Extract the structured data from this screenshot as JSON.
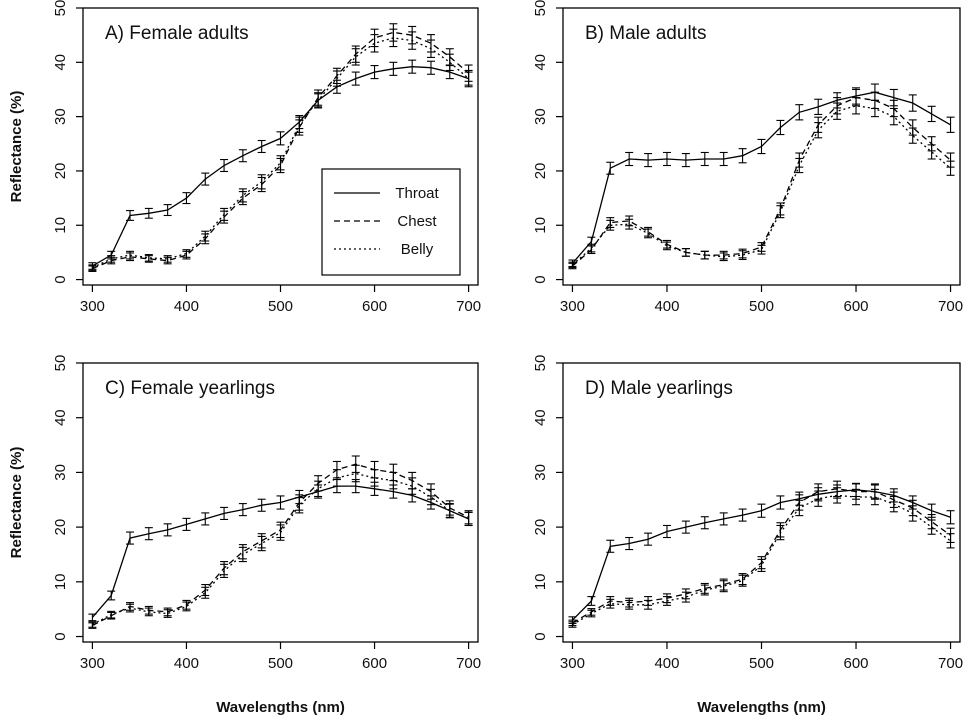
{
  "chart_data": [
    {
      "type": "line",
      "title": "A) Female adults",
      "xlabel": "",
      "ylabel": "Reflectance (%)",
      "xlim": [
        290,
        710
      ],
      "ylim": [
        -1,
        50
      ],
      "xticks": [
        300,
        400,
        500,
        600,
        700
      ],
      "yticks": [
        0,
        10,
        20,
        30,
        40,
        50
      ],
      "x": [
        300,
        320,
        340,
        360,
        380,
        400,
        420,
        440,
        460,
        480,
        500,
        520,
        540,
        560,
        580,
        600,
        620,
        640,
        660,
        680,
        700
      ],
      "legend": {
        "placement": "center-right",
        "entries": [
          "Throat",
          "Chest",
          "Belly"
        ]
      },
      "series": [
        {
          "name": "Throat",
          "style": "solid",
          "values": [
            2.5,
            4.5,
            11.8,
            12.2,
            12.8,
            15.0,
            18.5,
            21.0,
            22.8,
            24.5,
            26.0,
            29.0,
            33.0,
            35.5,
            37.0,
            38.2,
            38.8,
            39.2,
            39.0,
            38.2,
            37.0
          ],
          "err": [
            0.6,
            0.7,
            0.9,
            0.9,
            1.0,
            1.0,
            1.1,
            1.1,
            1.1,
            1.1,
            1.2,
            1.2,
            1.2,
            1.2,
            1.2,
            1.2,
            1.2,
            1.2,
            1.2,
            1.2,
            1.2
          ]
        },
        {
          "name": "Chest",
          "style": "dashed",
          "values": [
            2.0,
            3.5,
            4.2,
            3.8,
            3.5,
            4.5,
            7.5,
            11.5,
            15.0,
            17.5,
            21.0,
            28.0,
            33.5,
            37.5,
            41.5,
            44.5,
            45.5,
            45.0,
            43.5,
            41.0,
            38.0
          ],
          "err": [
            0.5,
            0.6,
            0.7,
            0.6,
            0.6,
            0.7,
            0.9,
            1.1,
            1.2,
            1.3,
            1.3,
            1.4,
            1.4,
            1.4,
            1.5,
            1.6,
            1.6,
            1.6,
            1.6,
            1.5,
            1.5
          ]
        },
        {
          "name": "Belly",
          "style": "dotted",
          "values": [
            2.2,
            3.8,
            4.5,
            4.0,
            3.8,
            4.8,
            8.0,
            12.0,
            15.5,
            18.0,
            21.5,
            28.5,
            33.0,
            37.0,
            41.0,
            43.5,
            44.5,
            44.0,
            42.5,
            40.0,
            37.0
          ],
          "err": [
            0.5,
            0.6,
            0.7,
            0.6,
            0.6,
            0.7,
            0.9,
            1.1,
            1.2,
            1.3,
            1.3,
            1.4,
            1.4,
            1.4,
            1.5,
            1.6,
            1.6,
            1.6,
            1.6,
            1.5,
            1.5
          ]
        }
      ]
    },
    {
      "type": "line",
      "title": "B) Male adults",
      "xlabel": "",
      "ylabel": "",
      "xlim": [
        290,
        710
      ],
      "ylim": [
        -1,
        50
      ],
      "xticks": [
        300,
        400,
        500,
        600,
        700
      ],
      "yticks": [
        0,
        10,
        20,
        30,
        40,
        50
      ],
      "x": [
        300,
        320,
        340,
        360,
        380,
        400,
        420,
        440,
        460,
        480,
        500,
        520,
        540,
        560,
        580,
        600,
        620,
        640,
        660,
        680,
        700
      ],
      "series": [
        {
          "name": "Throat",
          "style": "solid",
          "values": [
            3.0,
            7.0,
            20.5,
            22.2,
            22.0,
            22.2,
            22.0,
            22.2,
            22.2,
            22.8,
            24.5,
            28.0,
            30.8,
            31.8,
            33.0,
            33.8,
            34.5,
            33.5,
            32.5,
            30.5,
            28.5
          ],
          "err": [
            0.6,
            0.8,
            1.1,
            1.2,
            1.2,
            1.2,
            1.2,
            1.2,
            1.2,
            1.3,
            1.3,
            1.3,
            1.4,
            1.4,
            1.4,
            1.5,
            1.5,
            1.5,
            1.5,
            1.4,
            1.4
          ]
        },
        {
          "name": "Chest",
          "style": "dashed",
          "values": [
            2.5,
            5.5,
            10.5,
            10.8,
            8.8,
            6.5,
            5.0,
            4.5,
            4.5,
            4.8,
            6.0,
            13.0,
            22.0,
            28.5,
            32.0,
            33.5,
            33.0,
            31.5,
            28.0,
            25.0,
            22.0
          ],
          "err": [
            0.5,
            0.7,
            0.9,
            0.9,
            0.8,
            0.7,
            0.7,
            0.7,
            0.7,
            0.8,
            0.8,
            1.1,
            1.3,
            1.4,
            1.5,
            1.5,
            1.5,
            1.5,
            1.4,
            1.3,
            1.3
          ]
        },
        {
          "name": "Belly",
          "style": "dotted",
          "values": [
            2.7,
            5.8,
            10.0,
            10.2,
            8.5,
            6.2,
            5.0,
            4.5,
            4.2,
            4.5,
            5.5,
            12.5,
            21.0,
            27.5,
            31.0,
            32.0,
            31.5,
            30.0,
            26.5,
            23.5,
            20.5
          ],
          "err": [
            0.5,
            0.7,
            0.9,
            0.9,
            0.8,
            0.7,
            0.7,
            0.7,
            0.7,
            0.8,
            0.8,
            1.1,
            1.3,
            1.4,
            1.5,
            1.5,
            1.5,
            1.5,
            1.4,
            1.3,
            1.3
          ]
        }
      ]
    },
    {
      "type": "line",
      "title": "C) Female yearlings",
      "xlabel": "Wavelengths (nm)",
      "ylabel": "Reflectance (%)",
      "xlim": [
        290,
        710
      ],
      "ylim": [
        -1,
        50
      ],
      "xticks": [
        300,
        400,
        500,
        600,
        700
      ],
      "yticks": [
        0,
        10,
        20,
        30,
        40,
        50
      ],
      "x": [
        300,
        320,
        340,
        360,
        380,
        400,
        420,
        440,
        460,
        480,
        500,
        520,
        540,
        560,
        580,
        600,
        620,
        640,
        660,
        680,
        700
      ],
      "series": [
        {
          "name": "Throat",
          "style": "solid",
          "values": [
            3.5,
            7.5,
            18.0,
            18.8,
            19.5,
            20.5,
            21.5,
            22.5,
            23.2,
            24.0,
            24.5,
            25.5,
            26.5,
            27.5,
            27.5,
            27.0,
            26.5,
            25.8,
            24.5,
            23.0,
            21.5
          ],
          "err": [
            0.6,
            0.8,
            1.1,
            1.1,
            1.1,
            1.1,
            1.1,
            1.1,
            1.1,
            1.1,
            1.2,
            1.2,
            1.2,
            1.2,
            1.2,
            1.2,
            1.2,
            1.2,
            1.2,
            1.2,
            1.2
          ]
        },
        {
          "name": "Chest",
          "style": "dashed",
          "values": [
            2.0,
            3.8,
            5.5,
            4.8,
            4.5,
            5.8,
            8.5,
            12.5,
            15.5,
            17.5,
            19.5,
            24.5,
            28.0,
            30.5,
            31.5,
            30.5,
            30.0,
            28.5,
            26.5,
            23.5,
            21.8
          ],
          "err": [
            0.5,
            0.6,
            0.7,
            0.7,
            0.7,
            0.8,
            1.0,
            1.2,
            1.3,
            1.3,
            1.4,
            1.4,
            1.4,
            1.5,
            1.5,
            1.5,
            1.5,
            1.5,
            1.4,
            1.3,
            1.2
          ]
        },
        {
          "name": "Belly",
          "style": "dotted",
          "values": [
            2.2,
            4.0,
            5.2,
            4.5,
            4.2,
            5.5,
            8.0,
            12.0,
            15.0,
            17.0,
            19.0,
            24.0,
            27.0,
            29.0,
            29.8,
            29.0,
            28.5,
            27.5,
            25.5,
            23.0,
            21.5
          ],
          "err": [
            0.5,
            0.6,
            0.7,
            0.7,
            0.7,
            0.8,
            1.0,
            1.2,
            1.3,
            1.3,
            1.4,
            1.4,
            1.4,
            1.5,
            1.5,
            1.5,
            1.5,
            1.5,
            1.4,
            1.3,
            1.2
          ]
        }
      ]
    },
    {
      "type": "line",
      "title": "D) Male yearlings",
      "xlabel": "Wavelengths (nm)",
      "ylabel": "",
      "xlim": [
        290,
        710
      ],
      "ylim": [
        -1,
        50
      ],
      "xticks": [
        300,
        400,
        500,
        600,
        700
      ],
      "yticks": [
        0,
        10,
        20,
        30,
        40,
        50
      ],
      "x": [
        300,
        320,
        340,
        360,
        380,
        400,
        420,
        440,
        460,
        480,
        500,
        520,
        540,
        560,
        580,
        600,
        620,
        640,
        660,
        680,
        700
      ],
      "series": [
        {
          "name": "Throat",
          "style": "solid",
          "values": [
            3.0,
            6.5,
            16.5,
            17.0,
            17.8,
            19.2,
            20.0,
            20.8,
            21.5,
            22.2,
            23.0,
            24.5,
            25.2,
            26.0,
            26.5,
            26.8,
            26.5,
            25.8,
            24.5,
            23.0,
            21.8
          ],
          "err": [
            0.6,
            0.8,
            1.1,
            1.1,
            1.1,
            1.1,
            1.1,
            1.1,
            1.1,
            1.1,
            1.2,
            1.2,
            1.2,
            1.2,
            1.2,
            1.2,
            1.2,
            1.2,
            1.2,
            1.2,
            1.2
          ]
        },
        {
          "name": "Chest",
          "style": "dashed",
          "values": [
            2.5,
            4.5,
            6.5,
            6.2,
            6.5,
            7.0,
            7.8,
            8.8,
            9.5,
            10.5,
            13.5,
            19.5,
            24.5,
            26.5,
            27.0,
            26.5,
            26.5,
            25.0,
            23.5,
            21.0,
            18.5
          ],
          "err": [
            0.5,
            0.6,
            0.8,
            0.8,
            0.8,
            0.8,
            0.9,
            0.9,
            1.0,
            1.0,
            1.1,
            1.3,
            1.4,
            1.4,
            1.4,
            1.4,
            1.4,
            1.4,
            1.4,
            1.3,
            1.3
          ]
        },
        {
          "name": "Belly",
          "style": "dotted",
          "values": [
            2.2,
            4.2,
            6.0,
            5.8,
            5.8,
            6.5,
            7.2,
            8.5,
            9.2,
            10.2,
            13.0,
            19.0,
            23.5,
            25.2,
            25.8,
            25.5,
            25.5,
            24.2,
            22.5,
            20.0,
            17.5
          ],
          "err": [
            0.5,
            0.6,
            0.8,
            0.8,
            0.8,
            0.8,
            0.9,
            0.9,
            1.0,
            1.0,
            1.1,
            1.3,
            1.4,
            1.4,
            1.4,
            1.4,
            1.4,
            1.4,
            1.4,
            1.3,
            1.3
          ]
        }
      ]
    }
  ]
}
